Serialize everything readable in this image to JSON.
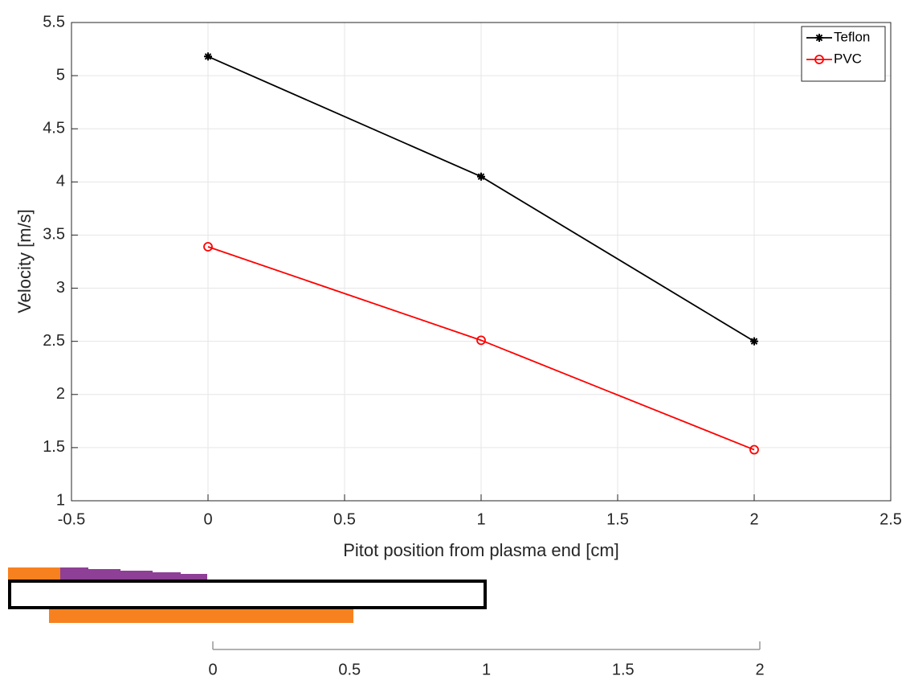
{
  "chart_data": {
    "type": "line",
    "xlabel": "Pitot position from plasma end [cm]",
    "ylabel": "Velocity [m/s]",
    "x": [
      0,
      1,
      2
    ],
    "series": [
      {
        "name": "Teflon",
        "color": "#000000",
        "marker": "asterisk",
        "values": [
          5.18,
          4.05,
          2.5
        ]
      },
      {
        "name": "PVC",
        "color": "#ff0000",
        "marker": "circle",
        "values": [
          3.39,
          2.51,
          1.48
        ]
      }
    ],
    "xlim": [
      -0.5,
      2.5
    ],
    "xticks": [
      -0.5,
      0,
      0.5,
      1,
      1.5,
      2,
      2.5
    ],
    "ylim": [
      1,
      5.5
    ],
    "yticks": [
      1,
      1.5,
      2,
      2.5,
      3,
      3.5,
      4,
      4.5,
      5,
      5.5
    ],
    "grid": true,
    "legend": "upper right"
  },
  "ruler": {
    "xlim": [
      0,
      2
    ],
    "xticks": [
      0,
      0.5,
      1,
      1.5,
      2
    ]
  }
}
